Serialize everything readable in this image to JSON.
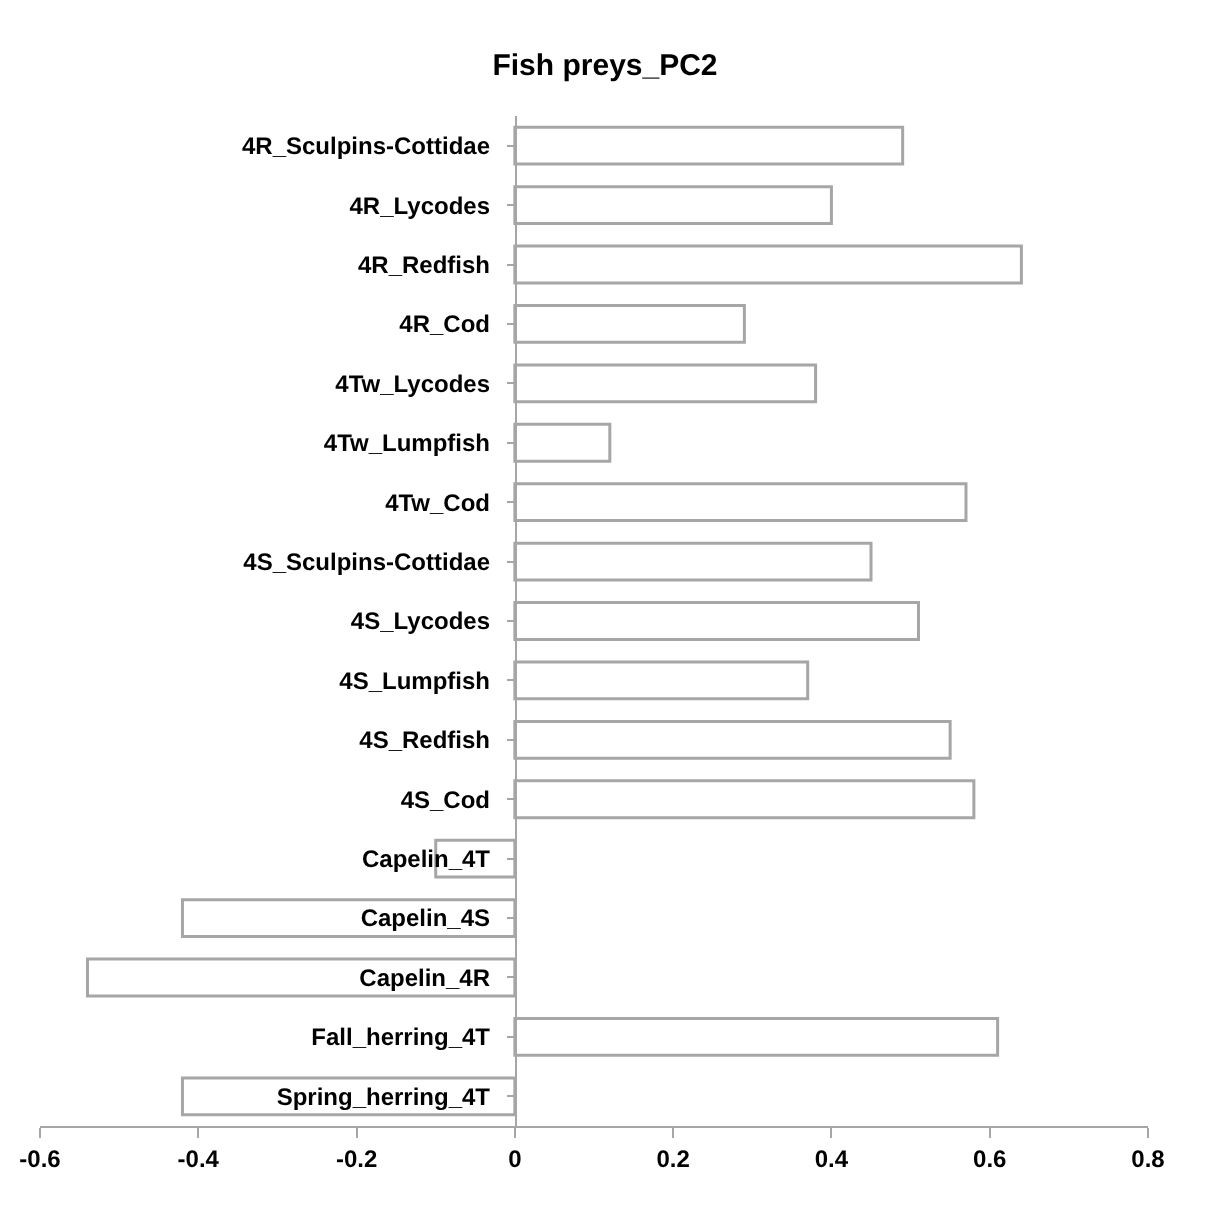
{
  "chart_data": {
    "type": "bar",
    "orientation": "horizontal",
    "title": "Fish preys_PC2",
    "categories": [
      "4R_Sculpins-Cottidae",
      "4R_Lycodes",
      "4R_Redfish",
      "4R_Cod",
      "4Tw_Lycodes",
      "4Tw_Lumpfish",
      "4Tw_Cod",
      "4S_Sculpins-Cottidae",
      "4S_Lycodes",
      "4S_Lumpfish",
      "4S_Redfish",
      "4S_Cod",
      "Capelin_4T",
      "Capelin_4S",
      "Capelin_4R",
      "Fall_herring_4T",
      "Spring_herring_4T"
    ],
    "values": [
      0.49,
      0.4,
      0.64,
      0.29,
      0.38,
      0.12,
      0.57,
      0.45,
      0.51,
      0.37,
      0.55,
      0.58,
      -0.1,
      -0.42,
      -0.54,
      0.61,
      -0.42
    ],
    "color": "#ffffff",
    "xlim": [
      -0.6,
      0.8
    ],
    "xticks": [
      -0.6,
      -0.4,
      -0.2,
      0,
      0.2,
      0.4,
      0.6,
      0.8
    ],
    "grid": false
  }
}
